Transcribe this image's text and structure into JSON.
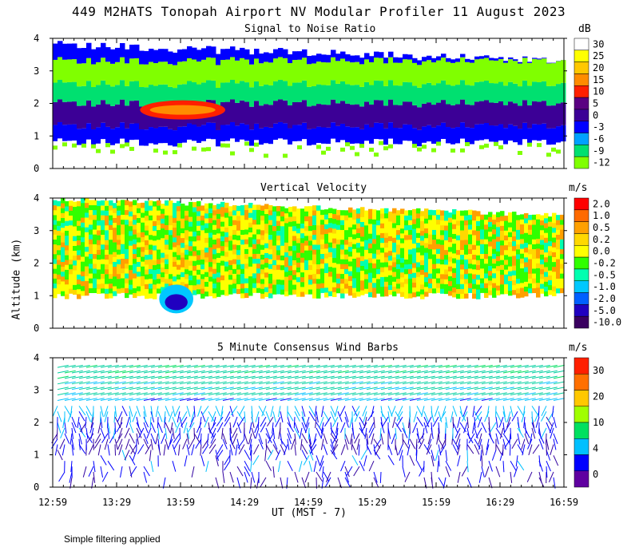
{
  "title": "449 M2HATS Tonopah Airport NV Modular Profiler 11 August 2023",
  "y_axis_label": "Altitude (km)",
  "x_axis_label": "UT  (MST - 7)",
  "x_ticks": [
    "12:59",
    "13:29",
    "13:59",
    "14:29",
    "14:59",
    "15:29",
    "15:59",
    "16:29",
    "16:59"
  ],
  "footnote": "Simple filtering applied",
  "chart_data": [
    {
      "type": "heatmap",
      "title": "Signal to Noise Ratio",
      "ylim": [
        0,
        4
      ],
      "y_ticks": [
        "0",
        "1",
        "2",
        "3",
        "4"
      ],
      "colorbar": {
        "unit": "dB",
        "labels": [
          "30",
          "25",
          "20",
          "15",
          "10",
          "5",
          "0",
          "-3",
          "-6",
          "-9",
          "-12"
        ],
        "colors": [
          "#ffffff",
          "#ffff00",
          "#ffc800",
          "#ff8c00",
          "#ff2000",
          "#5a0082",
          "#3c0096",
          "#0000ff",
          "#00a0ff",
          "#00e070",
          "#80ff00"
        ]
      },
      "bands_km": [
        {
          "from": 0.0,
          "to": 0.8,
          "value": "30"
        },
        {
          "from": 0.8,
          "to": 1.3,
          "value": "-3"
        },
        {
          "from": 1.3,
          "to": 2.0,
          "value": "0"
        },
        {
          "from": 2.0,
          "to": 2.6,
          "value": "-9"
        },
        {
          "from": 2.6,
          "to": 3.3,
          "value": "-12"
        },
        {
          "from": 3.3,
          "to": 3.8,
          "value": "-3"
        }
      ],
      "features": [
        {
          "name": "enhanced layer",
          "time": "13:40-14:20",
          "alt_km": "1.5-2.2",
          "value": "10"
        }
      ]
    },
    {
      "type": "heatmap",
      "title": "Vertical Velocity",
      "ylim": [
        0,
        4
      ],
      "y_ticks": [
        "0",
        "1",
        "2",
        "3",
        "4"
      ],
      "colorbar": {
        "unit": "m/s",
        "labels": [
          "2.0",
          "1.0",
          "0.5",
          "0.2",
          "0.0",
          "-0.2",
          "-0.5",
          "-1.0",
          "-2.0",
          "-5.0",
          "-10.0"
        ],
        "colors": [
          "#ff0000",
          "#ff6a00",
          "#ffa000",
          "#ffd800",
          "#ffff00",
          "#30ff00",
          "#00ffb0",
          "#00c8ff",
          "#0060ff",
          "#2000c0",
          "#3a0060"
        ]
      },
      "dominant_values": [
        "0.0",
        "-0.2",
        "0.2"
      ],
      "features": [
        {
          "name": "downdraft",
          "time": "13:50-14:05",
          "alt_km": "0.4-1.4",
          "value": "-1.0"
        }
      ]
    },
    {
      "type": "scatter",
      "title": "5 Minute Consensus Wind Barbs",
      "ylim": [
        0,
        4
      ],
      "y_ticks": [
        "0",
        "1",
        "2",
        "3",
        "4"
      ],
      "colorbar": {
        "unit": "m/s",
        "labels": [
          "30",
          "20",
          "10",
          "4",
          "0"
        ],
        "colors": [
          "#ff2000",
          "#ff7000",
          "#ffc800",
          "#a0ff00",
          "#00e060",
          "#00c0ff",
          "#0000ff",
          "#6000a0"
        ]
      },
      "speed_by_altitude": [
        {
          "alt_km": 3.5,
          "speed_ms": 11
        },
        {
          "alt_km": 3.0,
          "speed_ms": 9
        },
        {
          "alt_km": 2.5,
          "speed_ms": 6
        },
        {
          "alt_km": 2.0,
          "speed_ms": 4
        },
        {
          "alt_km": 1.5,
          "speed_ms": 3
        },
        {
          "alt_km": 1.0,
          "speed_ms": 4
        },
        {
          "alt_km": 0.5,
          "speed_ms": 3
        }
      ]
    }
  ]
}
